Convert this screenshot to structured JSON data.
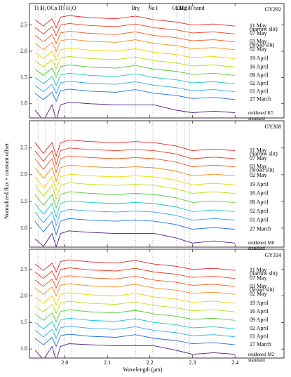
{
  "chart_data": [
    {
      "type": "line",
      "title": "GY292",
      "xlim": [
        1.917,
        2.515
      ],
      "ylim": [
        0.73,
        2.91
      ],
      "xticks": [
        {
          "value": 2,
          "label": "2.0"
        },
        2.1,
        2.2,
        2.3,
        2.4
      ],
      "yticks": [
        {
          "value": 1,
          "label": "1.0"
        },
        1.5,
        {
          "value": 2,
          "label": "2.0"
        },
        2.5
      ],
      "lines": [
        {
          "label": "Ti I",
          "x": 1.937
        },
        {
          "label": "H₂O",
          "x": 1.955
        },
        {
          "label": "Ca I",
          "x": 1.978
        },
        {
          "label": "Ti I",
          "x": 1.998
        },
        {
          "label": "H₂O",
          "x": 2.015
        },
        {
          "label": "Brγ",
          "x": 2.166
        },
        {
          "label": "Na I",
          "x": 2.207
        },
        {
          "label": "Ca I",
          "x": 2.263
        },
        {
          "label": "Mg I",
          "x": 2.281
        },
        {
          "label": "CO 2-0 band",
          "x": 2.294
        }
      ],
      "x": [
        1.93,
        1.95,
        1.97,
        1.98,
        1.99,
        2.01,
        2.06,
        2.12,
        2.166,
        2.21,
        2.26,
        2.3,
        2.35,
        2.4
      ],
      "series": [
        {
          "name": "11 May",
          "note": "(narrow slit)",
          "color": "#e8202a",
          "values": [
            2.6,
            2.48,
            2.62,
            2.45,
            2.65,
            2.68,
            2.64,
            2.62,
            2.67,
            2.6,
            2.56,
            2.5,
            2.52,
            2.48
          ]
        },
        {
          "name": "07 May",
          "color": "#f03a1e",
          "values": [
            2.45,
            2.33,
            2.47,
            2.3,
            2.5,
            2.53,
            2.49,
            2.47,
            2.52,
            2.45,
            2.41,
            2.35,
            2.37,
            2.33
          ]
        },
        {
          "name": "03 May",
          "note": "(broad slit)",
          "color": "#f5581a",
          "values": [
            2.3,
            2.18,
            2.32,
            2.15,
            2.35,
            2.38,
            2.34,
            2.32,
            2.37,
            2.3,
            2.26,
            2.2,
            2.22,
            2.18
          ]
        },
        {
          "name": "02 May",
          "color": "#f98a12",
          "values": [
            2.15,
            2.03,
            2.17,
            2.0,
            2.2,
            2.23,
            2.19,
            2.17,
            2.22,
            2.15,
            2.11,
            2.05,
            2.07,
            2.03
          ]
        },
        {
          "name": "19 April",
          "color": "#f2d400",
          "values": [
            1.98,
            1.86,
            2.0,
            1.83,
            2.03,
            2.06,
            2.02,
            2.0,
            2.05,
            1.98,
            1.94,
            1.88,
            1.9,
            1.86
          ]
        },
        {
          "name": "16 April",
          "color": "#c0dc10",
          "values": [
            1.82,
            1.7,
            1.84,
            1.67,
            1.87,
            1.9,
            1.86,
            1.84,
            1.89,
            1.82,
            1.78,
            1.72,
            1.74,
            1.7
          ]
        },
        {
          "name": "09 April",
          "color": "#50cc30",
          "values": [
            1.66,
            1.54,
            1.68,
            1.51,
            1.71,
            1.74,
            1.7,
            1.68,
            1.73,
            1.66,
            1.62,
            1.56,
            1.58,
            1.54
          ]
        },
        {
          "name": "02 April",
          "color": "#10c8c0",
          "values": [
            1.5,
            1.38,
            1.52,
            1.35,
            1.55,
            1.58,
            1.54,
            1.52,
            1.57,
            1.5,
            1.46,
            1.4,
            1.42,
            1.38
          ]
        },
        {
          "name": "01 April",
          "color": "#30a8f0",
          "values": [
            1.35,
            1.23,
            1.37,
            1.2,
            1.4,
            1.43,
            1.39,
            1.37,
            1.42,
            1.35,
            1.31,
            1.25,
            1.27,
            1.23
          ]
        },
        {
          "name": "27 March",
          "color": "#1f6fe0",
          "values": [
            1.2,
            1.08,
            1.22,
            1.05,
            1.25,
            1.28,
            1.24,
            1.22,
            1.27,
            1.2,
            1.16,
            1.1,
            1.12,
            1.08
          ]
        },
        {
          "name": "reddened K5 standard",
          "color": "#4b1a8a",
          "values": [
            0.88,
            0.68,
            0.98,
            0.68,
            0.98,
            1.03,
            1.0,
            0.98,
            0.98,
            0.98,
            0.88,
            0.83,
            0.86,
            0.83
          ]
        }
      ]
    },
    {
      "type": "line",
      "title": "GY308",
      "ylabel": "Normalized flux + constant offset",
      "xlim": [
        1.917,
        2.515
      ],
      "ylim": [
        0.645,
        3.01
      ],
      "xticks": [
        {
          "value": 2,
          "label": "2.0"
        },
        2.1,
        2.2,
        2.3,
        2.4
      ],
      "yticks": [
        {
          "value": 1,
          "label": "1.0"
        },
        1.5,
        {
          "value": 2,
          "label": "2.0"
        },
        2.5
      ],
      "x": [
        1.93,
        1.95,
        1.97,
        1.98,
        1.99,
        2.01,
        2.06,
        2.12,
        2.166,
        2.21,
        2.26,
        2.3,
        2.35,
        2.4
      ],
      "series": [
        {
          "name": "11 May",
          "note": "(narrow slit)",
          "color": "#e8202a",
          "values": [
            2.6,
            2.4,
            2.6,
            2.35,
            2.6,
            2.65,
            2.62,
            2.6,
            2.62,
            2.6,
            2.54,
            2.45,
            2.48,
            2.45
          ]
        },
        {
          "name": "07 May",
          "color": "#f03a1e",
          "values": [
            2.45,
            2.25,
            2.45,
            2.2,
            2.45,
            2.5,
            2.47,
            2.45,
            2.47,
            2.45,
            2.39,
            2.3,
            2.33,
            2.3
          ]
        },
        {
          "name": "03 May",
          "note": "(broad slit)",
          "color": "#f5581a",
          "values": [
            2.3,
            2.1,
            2.3,
            2.05,
            2.3,
            2.35,
            2.32,
            2.3,
            2.32,
            2.3,
            2.24,
            2.15,
            2.18,
            2.15
          ]
        },
        {
          "name": "02 May",
          "color": "#f98a12",
          "values": [
            2.13,
            1.93,
            2.13,
            1.88,
            2.13,
            2.18,
            2.15,
            2.13,
            2.15,
            2.13,
            2.07,
            1.98,
            2.01,
            1.98
          ]
        },
        {
          "name": "19 April",
          "color": "#f2d400",
          "values": [
            1.96,
            1.76,
            1.96,
            1.71,
            1.96,
            2.01,
            1.98,
            1.96,
            1.98,
            1.96,
            1.9,
            1.81,
            1.84,
            1.81
          ]
        },
        {
          "name": "16 April",
          "color": "#c0dc10",
          "values": [
            1.8,
            1.6,
            1.8,
            1.55,
            1.8,
            1.85,
            1.82,
            1.8,
            1.82,
            1.8,
            1.74,
            1.65,
            1.68,
            1.65
          ]
        },
        {
          "name": "09 April",
          "color": "#50cc30",
          "values": [
            1.63,
            1.43,
            1.63,
            1.38,
            1.63,
            1.68,
            1.65,
            1.63,
            1.65,
            1.63,
            1.57,
            1.48,
            1.51,
            1.48
          ]
        },
        {
          "name": "02 April",
          "color": "#10c8c0",
          "values": [
            1.46,
            1.26,
            1.46,
            1.21,
            1.46,
            1.51,
            1.48,
            1.46,
            1.48,
            1.46,
            1.4,
            1.31,
            1.34,
            1.31
          ]
        },
        {
          "name": "01 April",
          "color": "#30a8f0",
          "values": [
            1.3,
            1.1,
            1.3,
            1.05,
            1.3,
            1.35,
            1.32,
            1.3,
            1.32,
            1.3,
            1.24,
            1.15,
            1.18,
            1.15
          ]
        },
        {
          "name": "27 March",
          "color": "#1f6fe0",
          "values": [
            1.13,
            0.93,
            1.13,
            0.88,
            1.13,
            1.18,
            1.15,
            1.13,
            1.15,
            1.13,
            1.07,
            0.98,
            1.01,
            0.98
          ]
        },
        {
          "name": "reddened M0 standard",
          "color": "#4b1a8a",
          "values": [
            0.8,
            0.66,
            0.9,
            0.65,
            0.9,
            0.95,
            0.92,
            0.9,
            0.9,
            0.9,
            0.82,
            0.72,
            0.76,
            0.72
          ]
        }
      ]
    },
    {
      "type": "line",
      "title": "GY314",
      "xlabel": "Wavelength (μm)",
      "xlim": [
        1.917,
        2.515
      ],
      "ylim": [
        0.83,
        2.88
      ],
      "xticks": [
        {
          "value": 2,
          "label": "2.0"
        },
        2.1,
        2.2,
        2.3,
        2.4
      ],
      "yticks": [
        {
          "value": 1,
          "label": "1.0"
        },
        1.5,
        {
          "value": 2,
          "label": "2.0"
        },
        2.5
      ],
      "x": [
        1.93,
        1.95,
        1.97,
        1.98,
        1.99,
        2.01,
        2.06,
        2.12,
        2.166,
        2.21,
        2.26,
        2.3,
        2.35,
        2.4
      ],
      "series": [
        {
          "name": "11 May",
          "note": "(narrow slit)",
          "color": "#e8202a",
          "values": [
            2.6,
            2.48,
            2.62,
            2.45,
            2.65,
            2.68,
            2.64,
            2.62,
            2.67,
            2.6,
            2.56,
            2.5,
            2.52,
            2.48
          ]
        },
        {
          "name": "07 May",
          "color": "#f03a1e",
          "values": [
            2.45,
            2.33,
            2.47,
            2.3,
            2.5,
            2.53,
            2.49,
            2.47,
            2.52,
            2.45,
            2.41,
            2.35,
            2.37,
            2.33
          ]
        },
        {
          "name": "03 May",
          "note": "(broad slit)",
          "color": "#f5581a",
          "values": [
            2.3,
            2.18,
            2.32,
            2.15,
            2.35,
            2.38,
            2.34,
            2.32,
            2.37,
            2.3,
            2.26,
            2.2,
            2.22,
            2.18
          ]
        },
        {
          "name": "02 May",
          "color": "#f98a12",
          "values": [
            2.15,
            2.03,
            2.17,
            2.0,
            2.2,
            2.23,
            2.19,
            2.17,
            2.22,
            2.15,
            2.11,
            2.05,
            2.07,
            2.03
          ]
        },
        {
          "name": "19 April",
          "color": "#f2d400",
          "values": [
            1.98,
            1.86,
            2.0,
            1.83,
            2.03,
            2.06,
            2.02,
            2.0,
            2.05,
            1.98,
            1.94,
            1.88,
            1.9,
            1.86
          ]
        },
        {
          "name": "16 April",
          "color": "#c0dc10",
          "values": [
            1.82,
            1.7,
            1.84,
            1.67,
            1.87,
            1.9,
            1.86,
            1.84,
            1.89,
            1.82,
            1.78,
            1.72,
            1.74,
            1.7
          ]
        },
        {
          "name": "09 April",
          "color": "#50cc30",
          "values": [
            1.66,
            1.54,
            1.68,
            1.51,
            1.71,
            1.74,
            1.7,
            1.68,
            1.73,
            1.66,
            1.62,
            1.56,
            1.58,
            1.54
          ]
        },
        {
          "name": "02 April",
          "color": "#10c8c0",
          "values": [
            1.5,
            1.38,
            1.52,
            1.35,
            1.55,
            1.58,
            1.54,
            1.52,
            1.57,
            1.5,
            1.46,
            1.4,
            1.42,
            1.38
          ]
        },
        {
          "name": "01 April",
          "color": "#30a8f0",
          "values": [
            1.35,
            1.23,
            1.37,
            1.2,
            1.4,
            1.43,
            1.39,
            1.37,
            1.42,
            1.35,
            1.31,
            1.25,
            1.27,
            1.23
          ]
        },
        {
          "name": "27 March",
          "color": "#1f6fe0",
          "values": [
            1.2,
            1.08,
            1.22,
            1.05,
            1.25,
            1.28,
            1.24,
            1.22,
            1.27,
            1.2,
            1.16,
            1.1,
            1.12,
            1.08
          ]
        },
        {
          "name": "reddened M2 standard",
          "color": "#4b1a8a",
          "values": [
            0.98,
            0.8,
            1.05,
            0.78,
            1.05,
            1.1,
            1.08,
            1.06,
            1.06,
            1.06,
            0.98,
            0.9,
            0.93,
            0.9
          ]
        }
      ]
    }
  ]
}
